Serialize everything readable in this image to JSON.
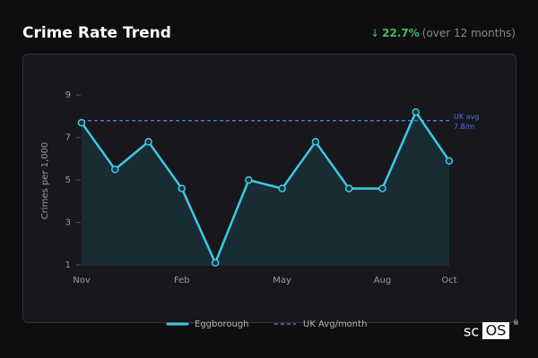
{
  "header": {
    "title": "Crime Rate Trend",
    "change_arrow": "↓",
    "change": "22.7%",
    "change_period": "(over 12 months)"
  },
  "chart_data": {
    "type": "line",
    "y_label": "Crimes per 1,000",
    "categories": [
      "Nov",
      null,
      null,
      "Feb",
      null,
      null,
      "May",
      null,
      null,
      "Aug",
      null,
      "Oct"
    ],
    "series": [
      {
        "name": "Eggborough",
        "color": "#3ec9e2",
        "values": [
          7.7,
          5.5,
          6.8,
          4.6,
          1.1,
          5.0,
          4.6,
          6.8,
          4.6,
          4.6,
          8.2,
          5.9
        ]
      }
    ],
    "reference": {
      "name": "UK Avg/month",
      "color": "#4f73e3",
      "value": 7.8,
      "label_lines": [
        "UK avg",
        "7.8/m"
      ]
    },
    "ylim": [
      1,
      9.6
    ],
    "yticks": [
      1,
      3,
      5,
      7,
      9
    ],
    "grid": false
  },
  "logo": {
    "text": "sc",
    "boxed": "OS",
    "mark": "®"
  }
}
